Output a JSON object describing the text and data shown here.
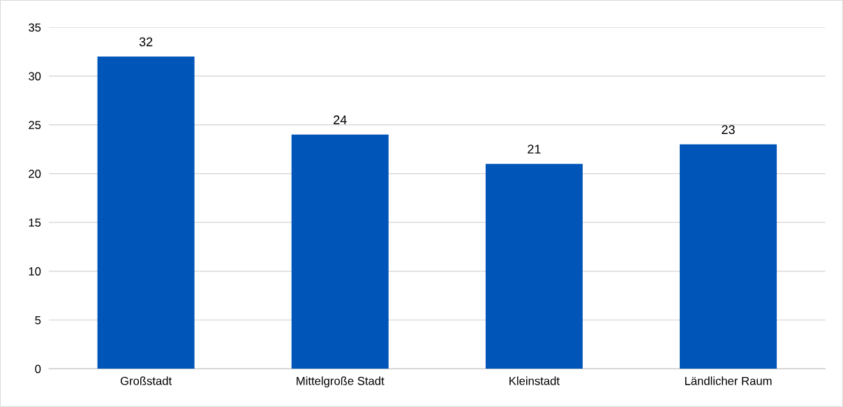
{
  "chart_data": {
    "type": "bar",
    "categories": [
      "Großstadt",
      "Mittelgroße Stadt",
      "Kleinstadt",
      "Ländlicher Raum"
    ],
    "values": [
      32,
      24,
      21,
      23
    ],
    "color": "#0055b8",
    "data_labels": true,
    "ylim": [
      0,
      35
    ],
    "yticks": [
      0,
      5,
      10,
      15,
      20,
      25,
      30,
      35
    ],
    "grid": "y",
    "legend": false
  }
}
